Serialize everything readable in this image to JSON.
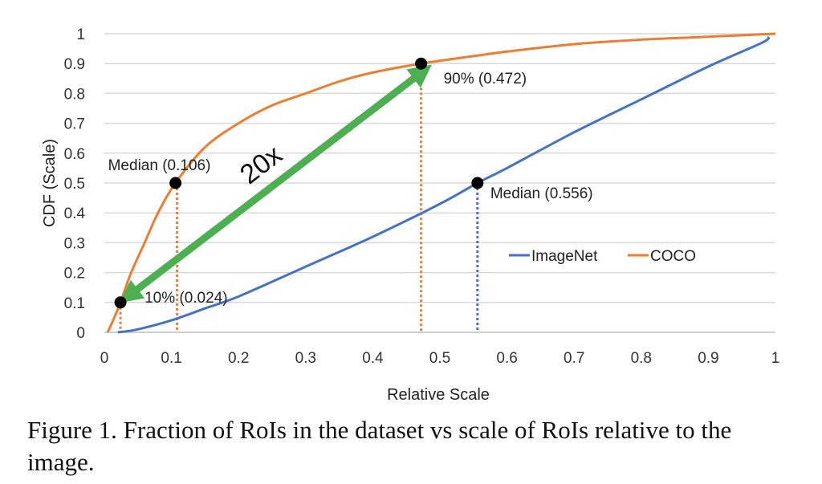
{
  "chart_data": {
    "type": "line",
    "xlabel": "Relative Scale",
    "ylabel": "CDF (Scale)",
    "xlim": [
      0,
      1
    ],
    "ylim": [
      0,
      1
    ],
    "x_ticks": [
      "0",
      "0.1",
      "0.2",
      "0.3",
      "0.4",
      "0.5",
      "0.6",
      "0.7",
      "0.8",
      "0.9",
      "1"
    ],
    "y_ticks": [
      "0",
      "0.1",
      "0.2",
      "0.3",
      "0.4",
      "0.5",
      "0.6",
      "0.7",
      "0.8",
      "0.9",
      "1"
    ],
    "grid": "horizontal",
    "legend_position": "lower-right",
    "series": [
      {
        "name": "ImageNet",
        "color": "#4472C4",
        "x": [
          0.02,
          0.05,
          0.1,
          0.15,
          0.2,
          0.3,
          0.4,
          0.5,
          0.556,
          0.6,
          0.7,
          0.8,
          0.9,
          0.98,
          0.99
        ],
        "y": [
          0.0,
          0.01,
          0.04,
          0.08,
          0.12,
          0.22,
          0.32,
          0.43,
          0.5,
          0.55,
          0.67,
          0.78,
          0.89,
          0.97,
          0.99
        ]
      },
      {
        "name": "COCO",
        "color": "#ED7D31",
        "x": [
          0.005,
          0.015,
          0.024,
          0.04,
          0.06,
          0.08,
          0.106,
          0.15,
          0.2,
          0.25,
          0.3,
          0.35,
          0.4,
          0.472,
          0.55,
          0.6,
          0.7,
          0.8,
          0.9,
          1.0
        ],
        "y": [
          0.0,
          0.05,
          0.1,
          0.2,
          0.3,
          0.4,
          0.5,
          0.62,
          0.7,
          0.76,
          0.8,
          0.84,
          0.87,
          0.9,
          0.925,
          0.94,
          0.965,
          0.98,
          0.99,
          1.0
        ]
      }
    ],
    "points": [
      {
        "x": 0.024,
        "y": 0.1,
        "label": "10% (0.024)",
        "color": "#ED7D31"
      },
      {
        "x": 0.106,
        "y": 0.5,
        "label": "Median (0.106)",
        "color": "#ED7D31"
      },
      {
        "x": 0.472,
        "y": 0.9,
        "label": "90% (0.472)",
        "color": "#ED7D31"
      },
      {
        "x": 0.556,
        "y": 0.5,
        "label": "Median (0.556)",
        "color": "#4472C4"
      }
    ],
    "arrow": {
      "label": "20x",
      "color": "#4CAF50",
      "from": [
        0.024,
        0.1
      ],
      "to": [
        0.472,
        0.9
      ]
    }
  },
  "caption": "Figure 1. Fraction of RoIs in the dataset vs scale of RoIs relative to the image."
}
